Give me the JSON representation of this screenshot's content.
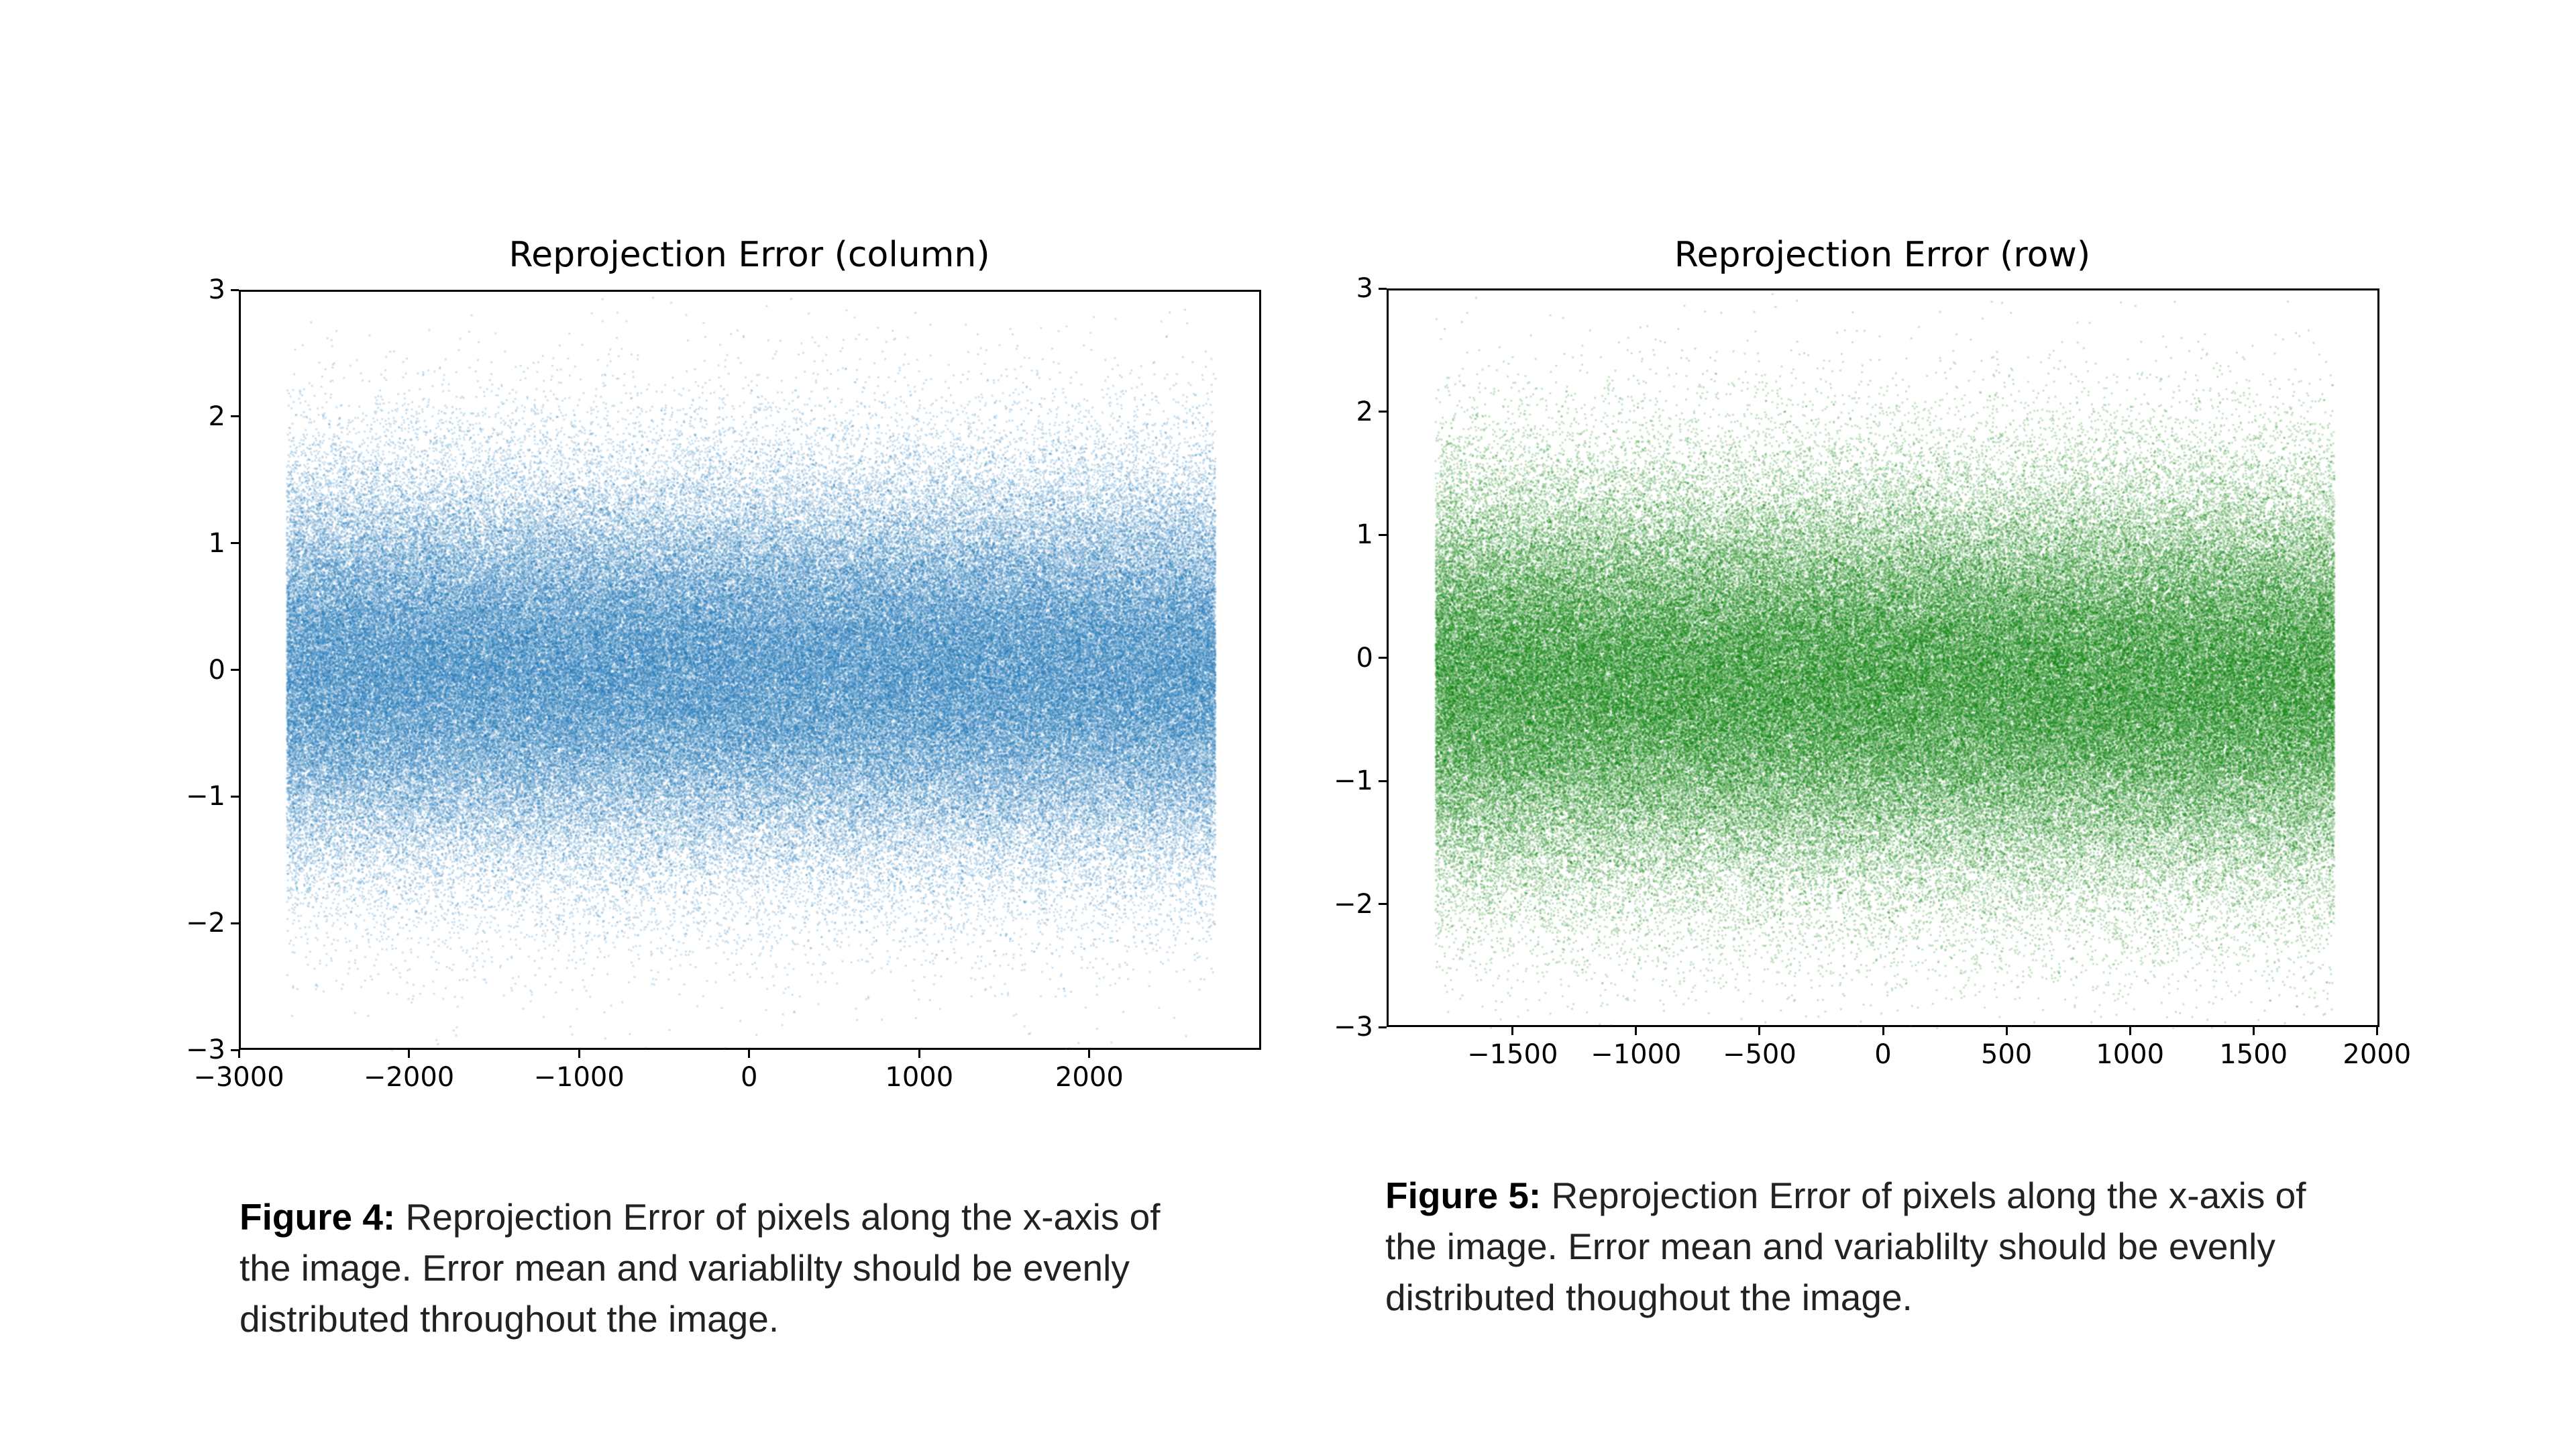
{
  "chart_data": [
    {
      "type": "scatter",
      "title": "Reprojection Error (column)",
      "xlabel": "",
      "ylabel": "",
      "xlim": [
        -3000,
        3010
      ],
      "ylim": [
        -3,
        3
      ],
      "xticks": [
        -3000,
        -2000,
        -1000,
        0,
        1000,
        2000
      ],
      "yticks": [
        -3,
        -2,
        -1,
        0,
        1,
        2,
        3
      ],
      "x_extent": [
        -2730,
        2730
      ],
      "y_mean": 0,
      "y_std": 0.75,
      "color": "#1f77b4",
      "grid": false
    },
    {
      "type": "scatter",
      "title": "Reprojection Error (row)",
      "xlabel": "",
      "ylabel": "",
      "xlim": [
        -2010,
        2010
      ],
      "ylim": [
        -3,
        3
      ],
      "xticks": [
        -1500,
        -1000,
        -500,
        0,
        500,
        1000,
        1500,
        2000
      ],
      "yticks": [
        -3,
        -2,
        -1,
        0,
        1,
        2,
        3
      ],
      "x_extent": [
        -1820,
        1820
      ],
      "y_mean": -0.2,
      "y_std": 0.8,
      "color": "#008000",
      "grid": false
    }
  ],
  "captions": [
    {
      "label": "Figure 4:",
      "text": " Reprojection Error of pixels along the x-axis of the image. Error mean and variablilty should be evenly distributed throughout the image."
    },
    {
      "label": "Figure 5:",
      "text": " Reprojection Error of pixels along the x-axis of the image. Error mean and variablilty should be evenly distributed thoughout the image."
    }
  ]
}
